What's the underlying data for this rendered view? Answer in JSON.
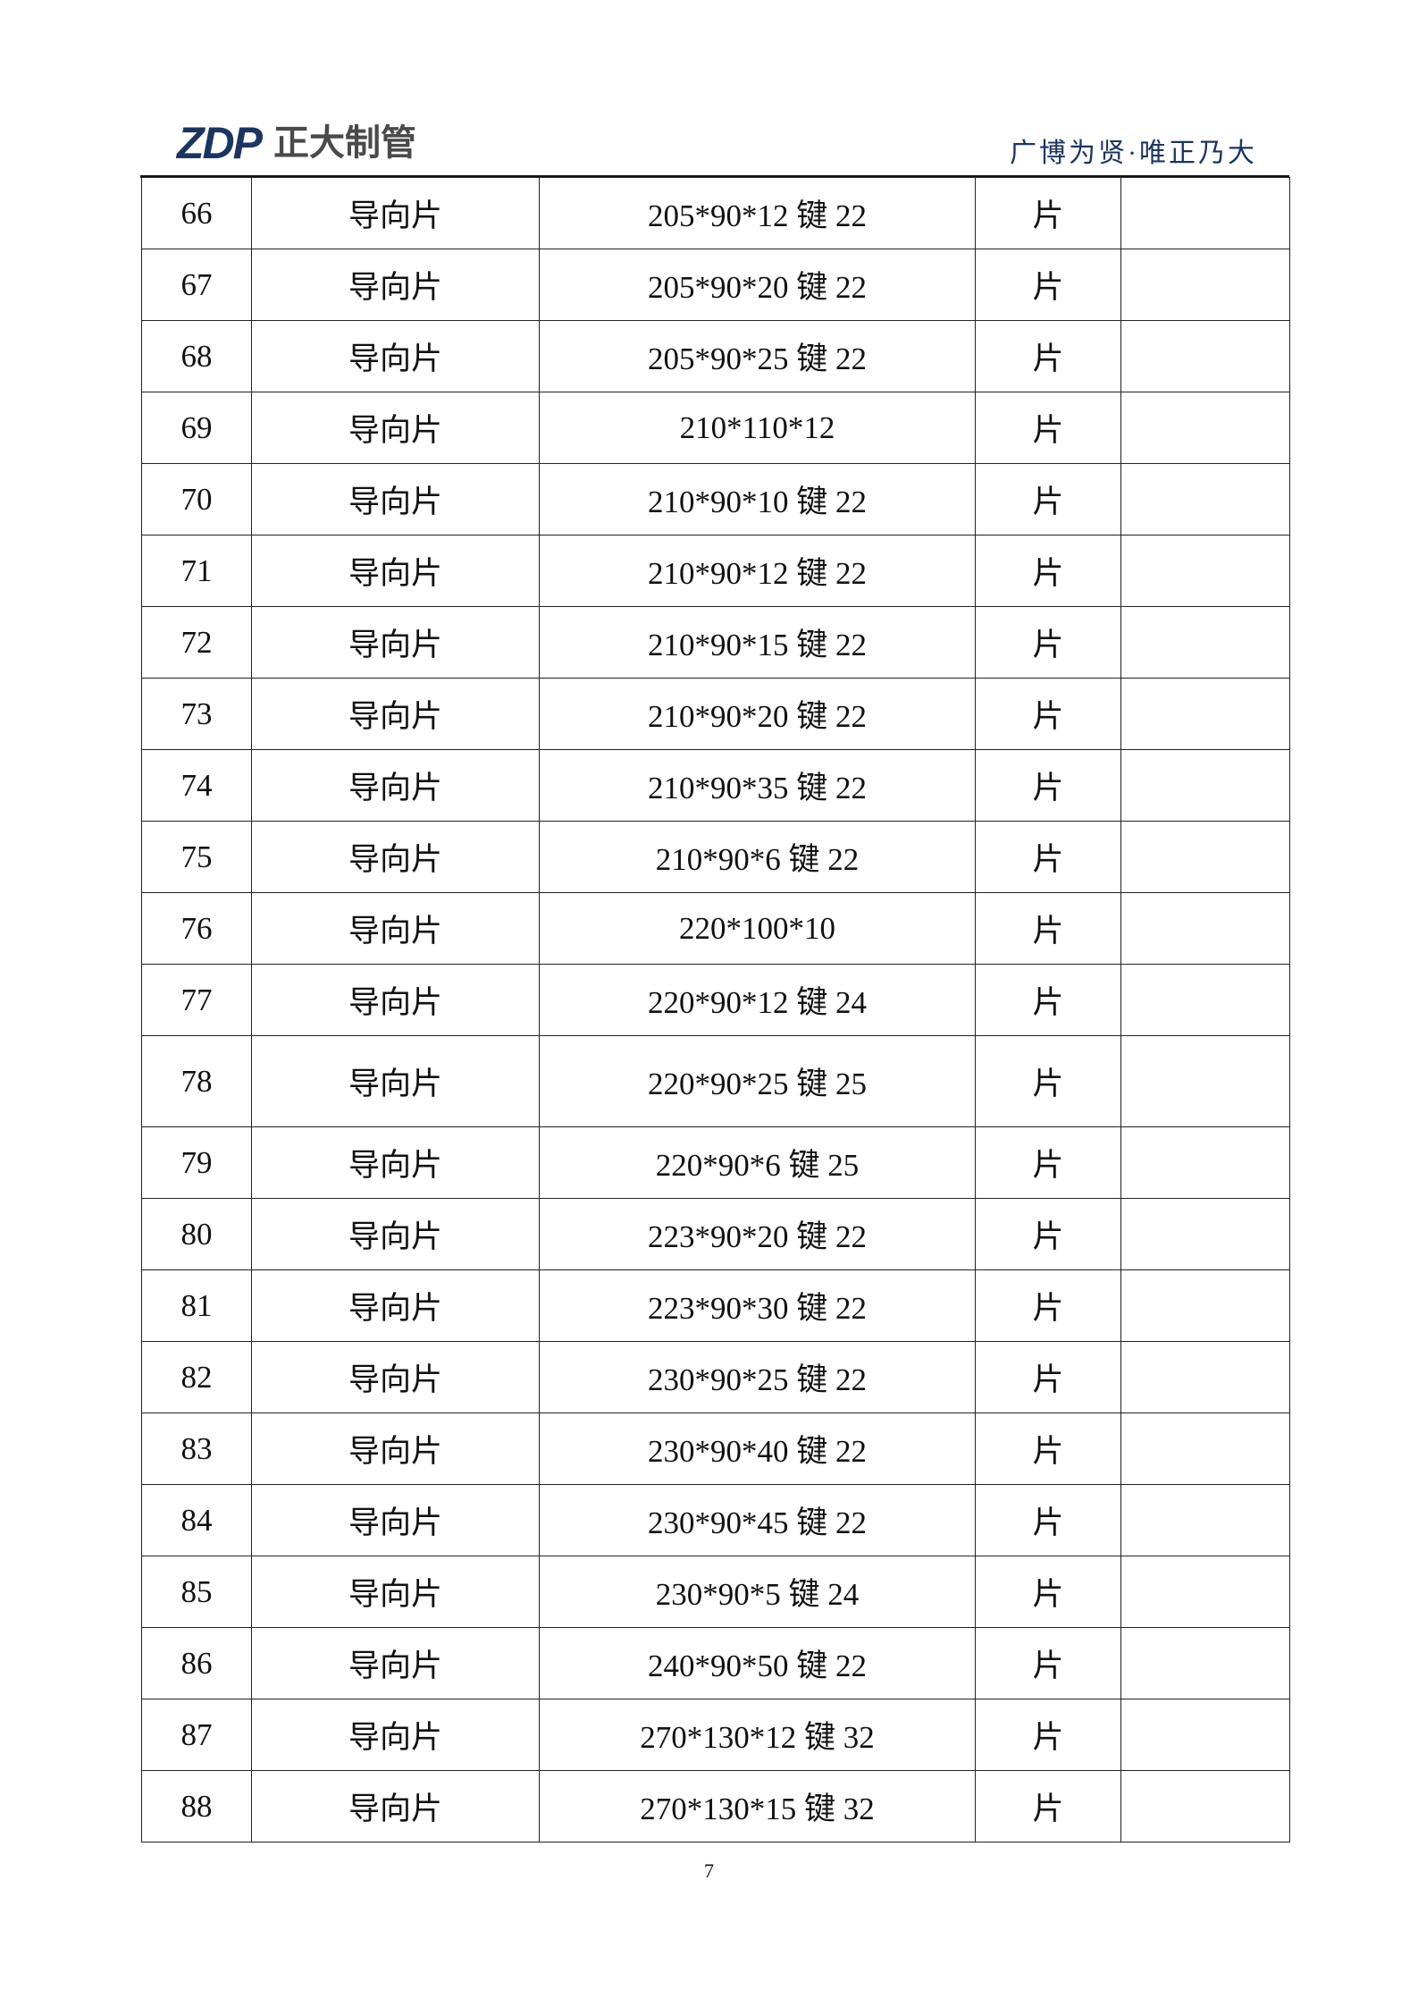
{
  "header": {
    "logo_mark": "ZDP",
    "logo_name": "正大制管",
    "slogan": "广博为贤·唯正乃大",
    "brand_color": "#1b3563"
  },
  "table": {
    "rows": [
      {
        "no": "66",
        "name": "导向片",
        "spec": "205*90*12 键 22",
        "unit": "片",
        "note": ""
      },
      {
        "no": "67",
        "name": "导向片",
        "spec": "205*90*20 键 22",
        "unit": "片",
        "note": ""
      },
      {
        "no": "68",
        "name": "导向片",
        "spec": "205*90*25 键 22",
        "unit": "片",
        "note": ""
      },
      {
        "no": "69",
        "name": "导向片",
        "spec": "210*110*12",
        "unit": "片",
        "note": ""
      },
      {
        "no": "70",
        "name": "导向片",
        "spec": "210*90*10 键 22",
        "unit": "片",
        "note": ""
      },
      {
        "no": "71",
        "name": "导向片",
        "spec": "210*90*12 键 22",
        "unit": "片",
        "note": ""
      },
      {
        "no": "72",
        "name": "导向片",
        "spec": "210*90*15 键 22",
        "unit": "片",
        "note": ""
      },
      {
        "no": "73",
        "name": "导向片",
        "spec": "210*90*20 键 22",
        "unit": "片",
        "note": ""
      },
      {
        "no": "74",
        "name": "导向片",
        "spec": "210*90*35 键 22",
        "unit": "片",
        "note": ""
      },
      {
        "no": "75",
        "name": "导向片",
        "spec": "210*90*6 键 22",
        "unit": "片",
        "note": ""
      },
      {
        "no": "76",
        "name": "导向片",
        "spec": "220*100*10",
        "unit": "片",
        "note": ""
      },
      {
        "no": "77",
        "name": "导向片",
        "spec": "220*90*12 键 24",
        "unit": "片",
        "note": ""
      },
      {
        "no": "78",
        "name": "导向片",
        "spec": "220*90*25 键 25",
        "unit": "片",
        "note": ""
      },
      {
        "no": "79",
        "name": "导向片",
        "spec": "220*90*6 键 25",
        "unit": "片",
        "note": ""
      },
      {
        "no": "80",
        "name": "导向片",
        "spec": "223*90*20 键 22",
        "unit": "片",
        "note": ""
      },
      {
        "no": "81",
        "name": "导向片",
        "spec": "223*90*30 键 22",
        "unit": "片",
        "note": ""
      },
      {
        "no": "82",
        "name": "导向片",
        "spec": "230*90*25 键 22",
        "unit": "片",
        "note": ""
      },
      {
        "no": "83",
        "name": "导向片",
        "spec": "230*90*40 键 22",
        "unit": "片",
        "note": ""
      },
      {
        "no": "84",
        "name": "导向片",
        "spec": "230*90*45 键 22",
        "unit": "片",
        "note": ""
      },
      {
        "no": "85",
        "name": "导向片",
        "spec": "230*90*5 键 24",
        "unit": "片",
        "note": ""
      },
      {
        "no": "86",
        "name": "导向片",
        "spec": "240*90*50 键 22",
        "unit": "片",
        "note": ""
      },
      {
        "no": "87",
        "name": "导向片",
        "spec": "270*130*12 键 32",
        "unit": "片",
        "note": ""
      },
      {
        "no": "88",
        "name": "导向片",
        "spec": "270*130*15 键 32",
        "unit": "片",
        "note": ""
      }
    ]
  },
  "footer": {
    "page_number": "7"
  }
}
